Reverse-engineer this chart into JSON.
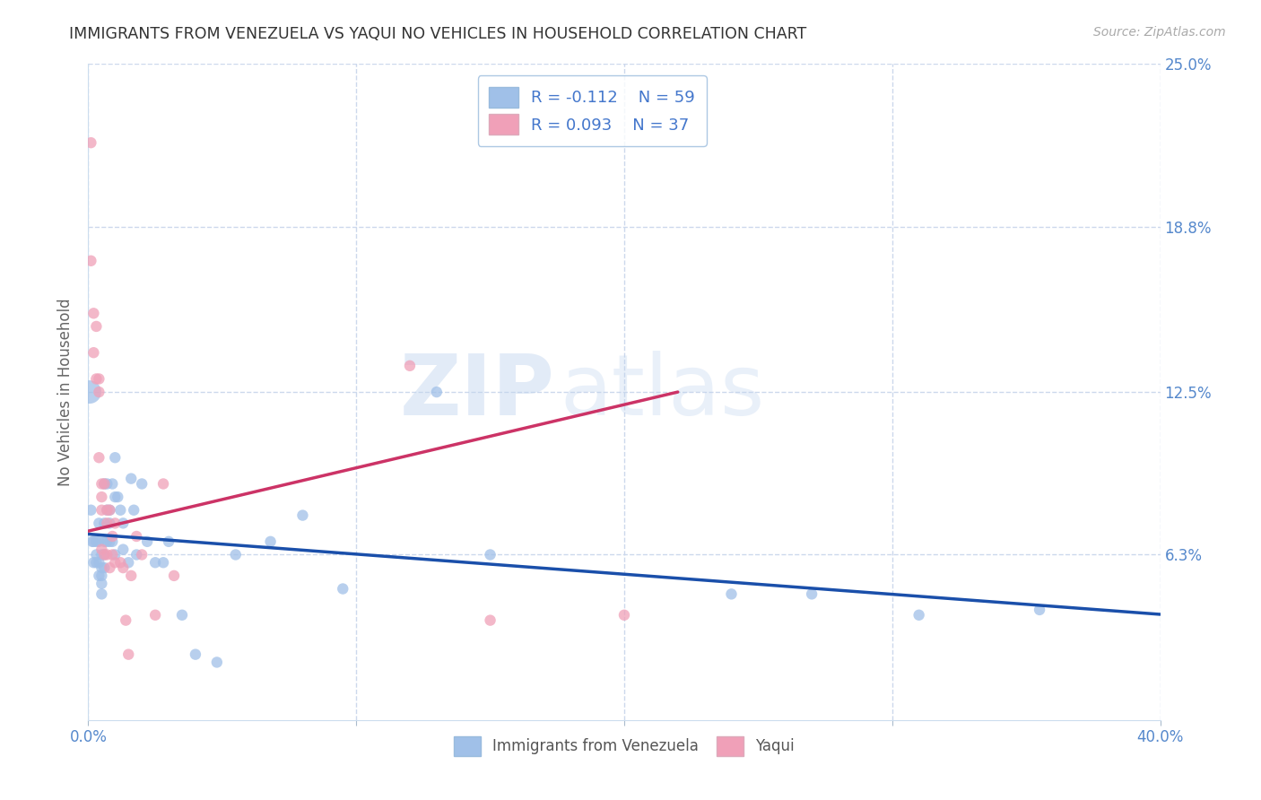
{
  "title": "IMMIGRANTS FROM VENEZUELA VS YAQUI NO VEHICLES IN HOUSEHOLD CORRELATION CHART",
  "source": "Source: ZipAtlas.com",
  "ylabel": "No Vehicles in Household",
  "xlim": [
    0.0,
    0.4
  ],
  "ylim": [
    0.0,
    0.25
  ],
  "xticks": [
    0.0,
    0.1,
    0.2,
    0.3,
    0.4
  ],
  "yticks": [
    0.063,
    0.125,
    0.188,
    0.25
  ],
  "right_ytick_labels": [
    "25.0%",
    "18.8%",
    "12.5%",
    "6.3%"
  ],
  "blue_R": -0.112,
  "blue_N": 59,
  "pink_R": 0.093,
  "pink_N": 37,
  "blue_color": "#a0c0e8",
  "blue_line_color": "#1a4faa",
  "pink_color": "#f0a0b8",
  "pink_line_color": "#cc3366",
  "watermark_zip": "ZIP",
  "watermark_atlas": "atlas",
  "background_color": "#ffffff",
  "grid_color": "#ccd8ec",
  "title_color": "#333333",
  "axis_label_color": "#666666",
  "tick_color": "#5588cc",
  "legend_facecolor": "#ffffff",
  "legend_edgecolor": "#99bbdd",
  "blue_scatter_x": [
    0.0005,
    0.001,
    0.0015,
    0.002,
    0.002,
    0.003,
    0.003,
    0.003,
    0.004,
    0.004,
    0.004,
    0.004,
    0.005,
    0.005,
    0.005,
    0.005,
    0.005,
    0.006,
    0.006,
    0.006,
    0.006,
    0.006,
    0.007,
    0.007,
    0.007,
    0.008,
    0.008,
    0.008,
    0.009,
    0.009,
    0.01,
    0.01,
    0.01,
    0.011,
    0.012,
    0.013,
    0.013,
    0.015,
    0.016,
    0.017,
    0.018,
    0.02,
    0.022,
    0.025,
    0.028,
    0.03,
    0.035,
    0.04,
    0.048,
    0.055,
    0.068,
    0.08,
    0.095,
    0.13,
    0.15,
    0.24,
    0.27,
    0.31,
    0.355
  ],
  "blue_scatter_y": [
    0.125,
    0.08,
    0.068,
    0.068,
    0.06,
    0.068,
    0.063,
    0.06,
    0.075,
    0.068,
    0.06,
    0.055,
    0.063,
    0.058,
    0.055,
    0.052,
    0.048,
    0.09,
    0.075,
    0.068,
    0.063,
    0.058,
    0.09,
    0.08,
    0.068,
    0.08,
    0.075,
    0.068,
    0.09,
    0.068,
    0.1,
    0.085,
    0.063,
    0.085,
    0.08,
    0.075,
    0.065,
    0.06,
    0.092,
    0.08,
    0.063,
    0.09,
    0.068,
    0.06,
    0.06,
    0.068,
    0.04,
    0.025,
    0.022,
    0.063,
    0.068,
    0.078,
    0.05,
    0.125,
    0.063,
    0.048,
    0.048,
    0.04,
    0.042
  ],
  "blue_scatter_sizes": [
    350,
    80,
    80,
    80,
    80,
    80,
    80,
    80,
    80,
    80,
    80,
    80,
    80,
    80,
    80,
    80,
    80,
    80,
    80,
    80,
    80,
    80,
    80,
    80,
    80,
    80,
    80,
    80,
    80,
    80,
    80,
    80,
    80,
    80,
    80,
    80,
    80,
    80,
    80,
    80,
    80,
    80,
    80,
    80,
    80,
    80,
    80,
    80,
    80,
    80,
    80,
    80,
    80,
    80,
    80,
    80,
    80,
    80,
    80
  ],
  "pink_scatter_x": [
    0.001,
    0.001,
    0.002,
    0.002,
    0.003,
    0.003,
    0.004,
    0.004,
    0.004,
    0.005,
    0.005,
    0.005,
    0.005,
    0.006,
    0.006,
    0.007,
    0.007,
    0.007,
    0.008,
    0.008,
    0.009,
    0.009,
    0.01,
    0.01,
    0.012,
    0.013,
    0.014,
    0.015,
    0.016,
    0.018,
    0.02,
    0.025,
    0.028,
    0.032,
    0.12,
    0.15,
    0.2
  ],
  "pink_scatter_y": [
    0.22,
    0.175,
    0.155,
    0.14,
    0.15,
    0.13,
    0.13,
    0.125,
    0.1,
    0.09,
    0.085,
    0.08,
    0.065,
    0.09,
    0.063,
    0.08,
    0.075,
    0.063,
    0.08,
    0.058,
    0.07,
    0.063,
    0.075,
    0.06,
    0.06,
    0.058,
    0.038,
    0.025,
    0.055,
    0.07,
    0.063,
    0.04,
    0.09,
    0.055,
    0.135,
    0.038,
    0.04
  ],
  "blue_trendline_x": [
    0.0,
    0.4
  ],
  "blue_trendline_y_start": 0.08,
  "blue_trendline_y_end": 0.063,
  "pink_trendline_x": [
    0.0,
    0.22
  ],
  "pink_trendline_y_start": 0.072,
  "pink_trendline_y_end": 0.125
}
